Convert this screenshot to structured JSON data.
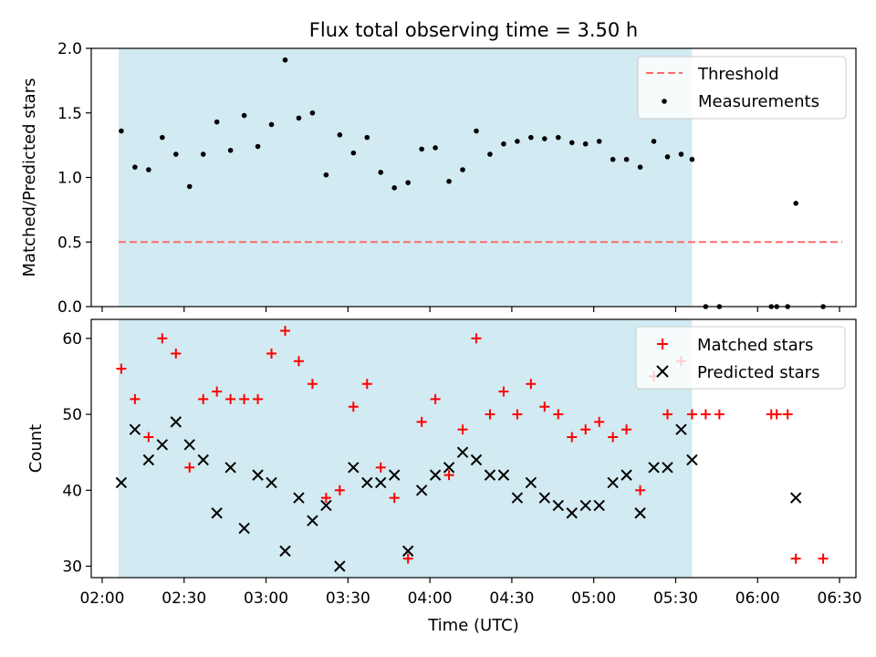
{
  "title": "Flux total observing time = 3.50 h",
  "colors": {
    "shade": "#add8e6",
    "threshold": "#ff6b6b",
    "measurement": "#000000",
    "matched": "#ff0000",
    "predicted": "#000000"
  },
  "chart_data": [
    {
      "type": "scatter",
      "panel": "top",
      "ylabel": "Matched/Predicted stars",
      "ylim": [
        0,
        2.0
      ],
      "yticks": [
        0.0,
        0.5,
        1.0,
        1.5,
        2.0
      ],
      "ytick_labels": [
        "0.0",
        "0.5",
        "1.0",
        "1.5",
        "2.0"
      ],
      "x_unit": "minutes since 00:00 UTC",
      "xlim": [
        118,
        398
      ],
      "observing_window": [
        128,
        338
      ],
      "threshold": {
        "label": "Threshold",
        "value": 0.5,
        "x_range": [
          128,
          393
        ]
      },
      "legend": {
        "position": "upper right",
        "entries": [
          "Threshold",
          "Measurements"
        ]
      },
      "series": [
        {
          "name": "Measurements",
          "x": [
            129,
            134,
            139,
            144,
            149,
            154,
            159,
            164,
            169,
            174,
            179,
            184,
            189,
            194,
            199,
            204,
            209,
            214,
            219,
            224,
            229,
            234,
            239,
            244,
            249,
            254,
            259,
            264,
            269,
            274,
            279,
            284,
            289,
            294,
            299,
            304,
            309,
            314,
            319,
            324,
            329,
            334,
            338,
            343,
            348,
            367,
            369,
            373,
            376,
            386
          ],
          "y": [
            1.36,
            1.08,
            1.06,
            1.31,
            1.18,
            0.93,
            1.18,
            1.43,
            1.21,
            1.48,
            1.24,
            1.41,
            1.91,
            1.46,
            1.5,
            1.02,
            1.33,
            1.19,
            1.31,
            1.04,
            0.92,
            0.96,
            1.22,
            1.23,
            0.97,
            1.06,
            1.36,
            1.18,
            1.26,
            1.28,
            1.31,
            1.3,
            1.31,
            1.27,
            1.26,
            1.28,
            1.14,
            1.14,
            1.08,
            1.28,
            1.16,
            1.18,
            1.14,
            0.0,
            0.0,
            0.0,
            0.0,
            0.0,
            0.8,
            0.0
          ]
        }
      ]
    },
    {
      "type": "scatter",
      "panel": "bottom",
      "xlabel": "Time (UTC)",
      "ylabel": "Count",
      "ylim": [
        28.5,
        62.5
      ],
      "yticks": [
        30,
        40,
        50,
        60
      ],
      "ytick_labels": [
        "30",
        "40",
        "50",
        "60"
      ],
      "xlim": [
        118,
        398
      ],
      "xticks": [
        122,
        152,
        182,
        212,
        242,
        272,
        302,
        332,
        362,
        392
      ],
      "xtick_labels": [
        "02:00",
        "02:30",
        "03:00",
        "03:30",
        "04:00",
        "04:30",
        "05:00",
        "05:30",
        "06:00",
        "06:30"
      ],
      "observing_window": [
        128,
        338
      ],
      "legend": {
        "position": "upper right",
        "entries": [
          "Matched stars",
          "Predicted stars"
        ]
      },
      "series": [
        {
          "name": "Matched stars",
          "marker": "plus",
          "x": [
            129,
            134,
            139,
            144,
            149,
            154,
            159,
            164,
            169,
            174,
            179,
            184,
            189,
            194,
            199,
            204,
            209,
            214,
            219,
            224,
            229,
            234,
            239,
            244,
            249,
            254,
            259,
            264,
            269,
            274,
            279,
            284,
            289,
            294,
            299,
            304,
            309,
            314,
            319,
            324,
            329,
            334,
            338,
            343,
            348,
            367,
            369,
            373,
            376,
            386
          ],
          "y": [
            56,
            52,
            47,
            60,
            58,
            43,
            52,
            53,
            52,
            52,
            52,
            58,
            61,
            57,
            54,
            39,
            40,
            51,
            54,
            43,
            39,
            31,
            49,
            52,
            42,
            48,
            60,
            50,
            53,
            50,
            54,
            51,
            50,
            47,
            48,
            49,
            47,
            48,
            40,
            55,
            50,
            57,
            50,
            50,
            50,
            50,
            50,
            50,
            31,
            31
          ]
        },
        {
          "name": "Predicted stars",
          "marker": "x",
          "x": [
            129,
            134,
            139,
            144,
            149,
            154,
            159,
            164,
            169,
            174,
            179,
            184,
            189,
            194,
            199,
            204,
            209,
            214,
            219,
            224,
            229,
            234,
            239,
            244,
            249,
            254,
            259,
            264,
            269,
            274,
            279,
            284,
            289,
            294,
            299,
            304,
            309,
            314,
            319,
            324,
            329,
            334,
            338,
            376
          ],
          "y": [
            41,
            48,
            44,
            46,
            49,
            46,
            44,
            37,
            43,
            35,
            42,
            41,
            32,
            39,
            36,
            38,
            30,
            43,
            41,
            41,
            42,
            32,
            40,
            42,
            43,
            45,
            44,
            42,
            42,
            39,
            41,
            39,
            38,
            37,
            38,
            38,
            41,
            42,
            37,
            43,
            43,
            48,
            44,
            39
          ]
        }
      ]
    }
  ]
}
